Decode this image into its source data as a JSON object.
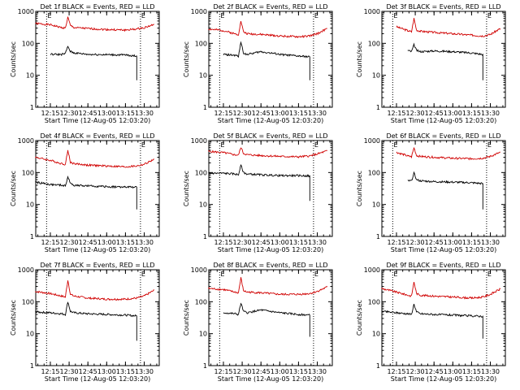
{
  "figure": {
    "ylabel": "Counts/sec",
    "xlabel": "Start Time (12-Aug-05 12:03:20)",
    "x_ticks": [
      "12:15",
      "12:30",
      "12:45",
      "13:00",
      "13:15",
      "13:30"
    ],
    "y_ticks": [
      "1",
      "10",
      "100",
      "1000"
    ],
    "marker_labels": [
      "E",
      "E"
    ],
    "black_color": "#000000",
    "red_color": "#d00000",
    "y_scale": "log"
  },
  "chart_data": [
    {
      "type": "line",
      "title": "Det 1f BLACK = Events, RED = LLD",
      "xlim": [
        "12:03:20",
        "13:42"
      ],
      "ylim": [
        1,
        1000
      ],
      "series": [
        {
          "color": "#d00000",
          "x": [
            "12:03",
            "12:15",
            "12:24",
            "12:27",
            "12:29",
            "12:31",
            "12:34",
            "12:45",
            "13:00",
            "13:15",
            "13:24",
            "13:30",
            "13:38"
          ],
          "values": [
            420,
            380,
            310,
            300,
            650,
            360,
            310,
            290,
            270,
            260,
            280,
            310,
            390
          ]
        },
        {
          "color": "#000000",
          "x": [
            "12:15",
            "12:24",
            "12:27",
            "12:29",
            "12:31",
            "12:34",
            "12:45",
            "13:00",
            "13:15",
            "13:24"
          ],
          "values": [
            45,
            45,
            48,
            80,
            55,
            50,
            45,
            44,
            43,
            40
          ]
        }
      ],
      "markers": [
        "12:12",
        "13:27"
      ],
      "drop": {
        "x": "13:24",
        "value": 7
      }
    },
    {
      "type": "line",
      "title": "Det 2f BLACK = Events, RED = LLD",
      "xlim": [
        "12:03:20",
        "13:42"
      ],
      "ylim": [
        1,
        1000
      ],
      "series": [
        {
          "color": "#d00000",
          "x": [
            "12:03",
            "12:15",
            "12:24",
            "12:27",
            "12:29",
            "12:31",
            "12:34",
            "12:45",
            "13:00",
            "13:15",
            "13:24",
            "13:30",
            "13:38"
          ],
          "values": [
            280,
            250,
            200,
            190,
            500,
            230,
            200,
            190,
            170,
            160,
            170,
            200,
            290
          ]
        },
        {
          "color": "#000000",
          "x": [
            "12:15",
            "12:24",
            "12:27",
            "12:29",
            "12:31",
            "12:34",
            "12:45",
            "13:00",
            "13:15",
            "13:24"
          ],
          "values": [
            45,
            42,
            40,
            110,
            50,
            45,
            55,
            45,
            40,
            38
          ]
        }
      ],
      "markers": [
        "12:12",
        "13:27"
      ],
      "drop": {
        "x": "13:24",
        "value": 7
      }
    },
    {
      "type": "line",
      "title": "Det 3f BLACK = Events, RED = LLD",
      "xlim": [
        "12:03:20",
        "13:42"
      ],
      "ylim": [
        1,
        1000
      ],
      "series": [
        {
          "color": "#d00000",
          "x": [
            "12:15",
            "12:24",
            "12:27",
            "12:29",
            "12:31",
            "12:34",
            "12:45",
            "13:00",
            "13:15",
            "13:24",
            "13:30",
            "13:38"
          ],
          "values": [
            330,
            250,
            230,
            600,
            260,
            240,
            220,
            200,
            180,
            170,
            190,
            290
          ]
        },
        {
          "color": "#000000",
          "x": [
            "12:24",
            "12:27",
            "12:29",
            "12:31",
            "12:34",
            "12:45",
            "13:00",
            "13:15",
            "13:24"
          ],
          "values": [
            60,
            55,
            90,
            60,
            55,
            58,
            55,
            50,
            45
          ]
        }
      ],
      "markers": [
        "12:12",
        "13:27"
      ],
      "drop": {
        "x": "13:24",
        "value": 7
      }
    },
    {
      "type": "line",
      "title": "Det 4f BLACK = Events, RED = LLD",
      "xlim": [
        "12:03:20",
        "13:42"
      ],
      "ylim": [
        1,
        1000
      ],
      "series": [
        {
          "color": "#d00000",
          "x": [
            "12:03",
            "12:15",
            "12:24",
            "12:27",
            "12:29",
            "12:31",
            "12:34",
            "12:45",
            "13:00",
            "13:15",
            "13:24",
            "13:30",
            "13:38"
          ],
          "values": [
            300,
            240,
            190,
            180,
            500,
            210,
            190,
            170,
            160,
            150,
            160,
            180,
            260
          ]
        },
        {
          "color": "#000000",
          "x": [
            "12:03",
            "12:15",
            "12:24",
            "12:27",
            "12:29",
            "12:31",
            "12:34",
            "12:45",
            "13:00",
            "13:15",
            "13:24"
          ],
          "values": [
            50,
            42,
            40,
            38,
            75,
            45,
            40,
            38,
            36,
            35,
            35
          ]
        }
      ],
      "markers": [
        "12:12",
        "13:27"
      ],
      "drop": {
        "x": "13:24",
        "value": 7
      }
    },
    {
      "type": "line",
      "title": "Det 5f BLACK = Events, RED = LLD",
      "xlim": [
        "12:03:20",
        "13:42"
      ],
      "ylim": [
        1,
        1000
      ],
      "series": [
        {
          "color": "#d00000",
          "x": [
            "12:03",
            "12:15",
            "12:24",
            "12:27",
            "12:29",
            "12:31",
            "12:34",
            "12:45",
            "13:00",
            "13:15",
            "13:24",
            "13:30",
            "13:38"
          ],
          "values": [
            460,
            420,
            360,
            350,
            620,
            400,
            360,
            340,
            320,
            310,
            330,
            380,
            480
          ]
        },
        {
          "color": "#000000",
          "x": [
            "12:03",
            "12:15",
            "12:24",
            "12:27",
            "12:29",
            "12:31",
            "12:34",
            "12:45",
            "13:00",
            "13:15",
            "13:24"
          ],
          "values": [
            95,
            95,
            90,
            85,
            170,
            100,
            90,
            85,
            80,
            80,
            78
          ]
        }
      ],
      "markers": [
        "12:12",
        "13:27"
      ],
      "drop": {
        "x": "13:24",
        "value": 13
      }
    },
    {
      "type": "line",
      "title": "Det 6f BLACK = Events, RED = LLD",
      "xlim": [
        "12:03:20",
        "13:42"
      ],
      "ylim": [
        1,
        1000
      ],
      "series": [
        {
          "color": "#d00000",
          "x": [
            "12:15",
            "12:24",
            "12:27",
            "12:29",
            "12:31",
            "12:34",
            "12:45",
            "13:00",
            "13:15",
            "13:24",
            "13:30",
            "13:38"
          ],
          "values": [
            430,
            330,
            310,
            600,
            340,
            320,
            300,
            280,
            270,
            280,
            320,
            430
          ]
        },
        {
          "color": "#000000",
          "x": [
            "12:24",
            "12:27",
            "12:29",
            "12:31",
            "12:34",
            "12:45",
            "13:00",
            "13:15",
            "13:24"
          ],
          "values": [
            55,
            55,
            95,
            60,
            55,
            52,
            50,
            48,
            45
          ]
        }
      ],
      "markers": [
        "12:12",
        "13:27"
      ],
      "drop": {
        "x": "13:24",
        "value": 7
      }
    },
    {
      "type": "line",
      "title": "Det 7f BLACK = Events, RED = LLD",
      "xlim": [
        "12:03:20",
        "13:42"
      ],
      "ylim": [
        1,
        1000
      ],
      "series": [
        {
          "color": "#d00000",
          "x": [
            "12:03",
            "12:15",
            "12:24",
            "12:27",
            "12:29",
            "12:31",
            "12:34",
            "12:45",
            "13:00",
            "13:15",
            "13:24",
            "13:30",
            "13:38"
          ],
          "values": [
            210,
            180,
            150,
            140,
            480,
            170,
            150,
            130,
            120,
            120,
            130,
            150,
            230
          ]
        },
        {
          "color": "#000000",
          "x": [
            "12:03",
            "12:15",
            "12:24",
            "12:27",
            "12:29",
            "12:31",
            "12:34",
            "12:45",
            "13:00",
            "13:15",
            "13:24"
          ],
          "values": [
            48,
            45,
            42,
            40,
            100,
            50,
            45,
            42,
            40,
            38,
            36
          ]
        }
      ],
      "markers": [
        "12:12",
        "13:27"
      ],
      "drop": {
        "x": "13:24",
        "value": 6
      }
    },
    {
      "type": "line",
      "title": "Det 8f BLACK = Events, RED = LLD",
      "xlim": [
        "12:03:20",
        "13:42"
      ],
      "ylim": [
        1,
        1000
      ],
      "series": [
        {
          "color": "#d00000",
          "x": [
            "12:03",
            "12:15",
            "12:24",
            "12:27",
            "12:29",
            "12:31",
            "12:34",
            "12:45",
            "13:00",
            "13:15",
            "13:24",
            "13:30",
            "13:38"
          ],
          "values": [
            260,
            240,
            200,
            190,
            560,
            220,
            200,
            190,
            170,
            170,
            180,
            210,
            290
          ]
        },
        {
          "color": "#000000",
          "x": [
            "12:15",
            "12:24",
            "12:27",
            "12:29",
            "12:31",
            "12:34",
            "12:45",
            "13:00",
            "13:15",
            "13:24"
          ],
          "values": [
            45,
            42,
            40,
            90,
            50,
            45,
            55,
            45,
            40,
            38
          ]
        }
      ],
      "markers": [
        "12:12",
        "13:27"
      ],
      "drop": {
        "x": "13:24",
        "value": 8
      }
    },
    {
      "type": "line",
      "title": "Det 9f BLACK = Events, RED = LLD",
      "xlim": [
        "12:03:20",
        "13:42"
      ],
      "ylim": [
        1,
        1000
      ],
      "series": [
        {
          "color": "#d00000",
          "x": [
            "12:03",
            "12:15",
            "12:24",
            "12:27",
            "12:29",
            "12:31",
            "12:34",
            "12:45",
            "13:00",
            "13:15",
            "13:24",
            "13:30",
            "13:38"
          ],
          "values": [
            260,
            200,
            160,
            150,
            420,
            180,
            160,
            150,
            140,
            130,
            140,
            170,
            250
          ]
        },
        {
          "color": "#000000",
          "x": [
            "12:03",
            "12:15",
            "12:24",
            "12:27",
            "12:29",
            "12:31",
            "12:34",
            "12:45",
            "13:00",
            "13:15",
            "13:24"
          ],
          "values": [
            50,
            45,
            42,
            40,
            85,
            48,
            42,
            40,
            38,
            36,
            35
          ]
        }
      ],
      "markers": [
        "12:12",
        "13:27"
      ],
      "drop": {
        "x": "13:24",
        "value": 7
      }
    }
  ]
}
